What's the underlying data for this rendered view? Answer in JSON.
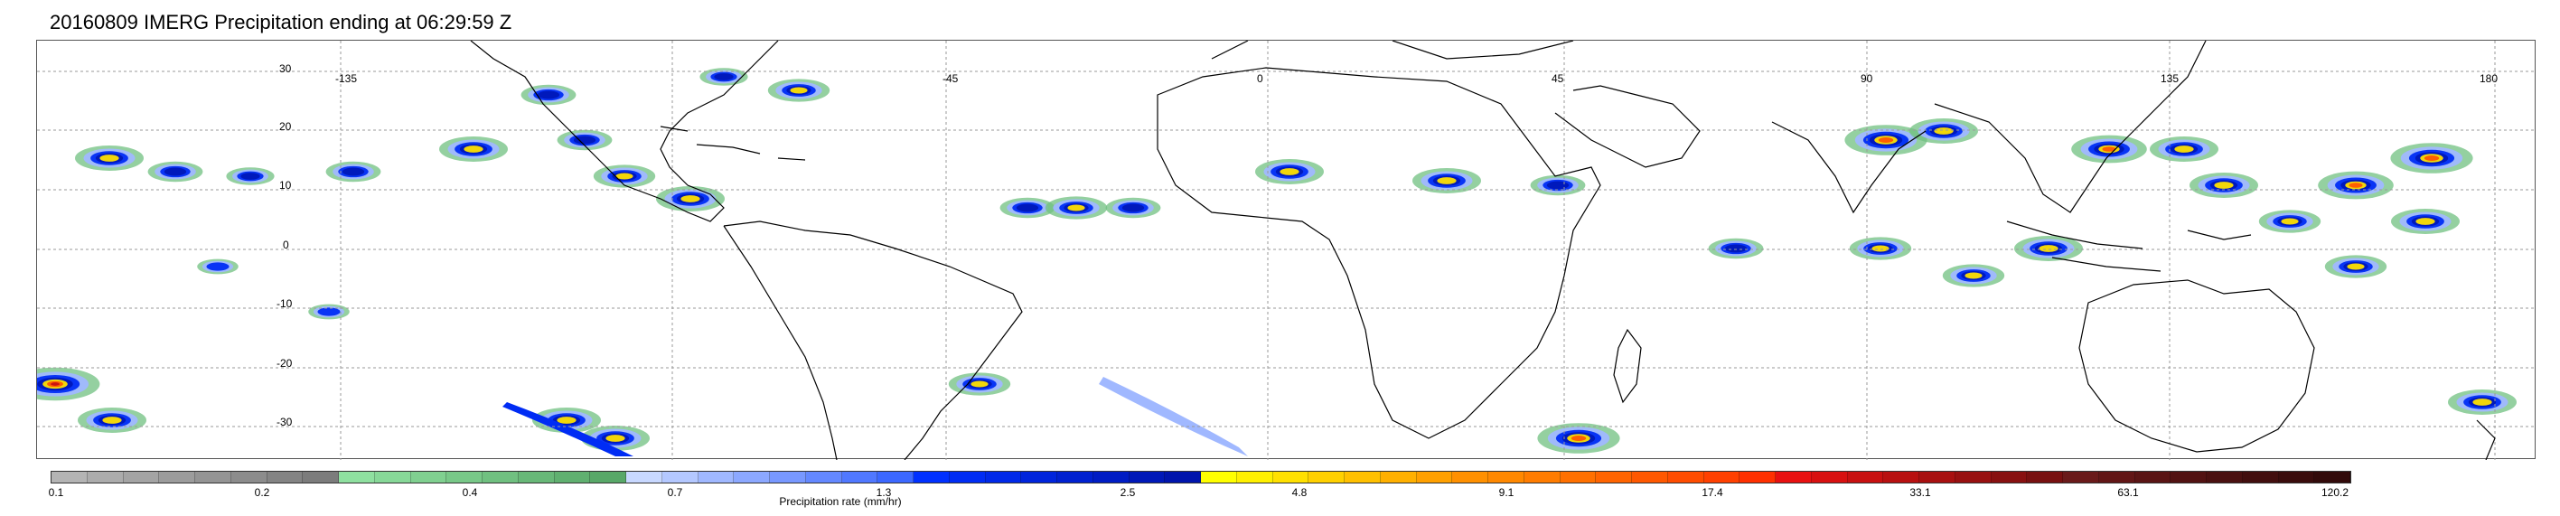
{
  "title": "20160809 IMERG Precipitation ending at 06:29:59 Z",
  "map": {
    "lat_labels": [
      "30",
      "20",
      "10",
      "0",
      "-10",
      "-20",
      "-30"
    ],
    "lon_labels": [
      "-135",
      "-45",
      "0",
      "45",
      "90",
      "135",
      "180"
    ],
    "land_outline_color": "#000000",
    "gridline_color": "#9a9a9a",
    "lat_range": [
      -38,
      38
    ],
    "lon_range": [
      -180,
      180
    ]
  },
  "colorbar": {
    "label": "Precipitation rate (mm/hr)",
    "tick_labels": [
      "0.1",
      "0.2",
      "0.4",
      "0.7",
      "1.3",
      "2.5",
      "4.8",
      "9.1",
      "17.4",
      "33.1",
      "63.1",
      "120.2"
    ],
    "colors": [
      "#b4b4b4",
      "#acacac",
      "#a4a4a4",
      "#9c9c9c",
      "#949494",
      "#8c8c8c",
      "#848484",
      "#7c7c7c",
      "#8fe0a0",
      "#87d898",
      "#80d090",
      "#78c888",
      "#70c080",
      "#68b878",
      "#60b070",
      "#58a868",
      "#c8d8ff",
      "#b4c8ff",
      "#a0b8ff",
      "#8ca8ff",
      "#7898ff",
      "#6488ff",
      "#5078ff",
      "#3c68ff",
      "#0030ff",
      "#002cf4",
      "#0028e8",
      "#0024dc",
      "#0020d0",
      "#001cc4",
      "#0018b8",
      "#0014ac",
      "#ffff00",
      "#fff000",
      "#ffe000",
      "#ffd000",
      "#ffc000",
      "#ffb000",
      "#ffa000",
      "#ff9000",
      "#ff8800",
      "#ff7c00",
      "#ff7000",
      "#ff6400",
      "#ff5800",
      "#ff4c00",
      "#ff4000",
      "#ff3000",
      "#e81010",
      "#d81010",
      "#c81010",
      "#b81010",
      "#a81010",
      "#981010",
      "#881010",
      "#781010",
      "#6a1a1a",
      "#621616",
      "#5a1414",
      "#521212",
      "#4a1010",
      "#420e0e",
      "#3a0c0c",
      "#320a0a"
    ]
  }
}
